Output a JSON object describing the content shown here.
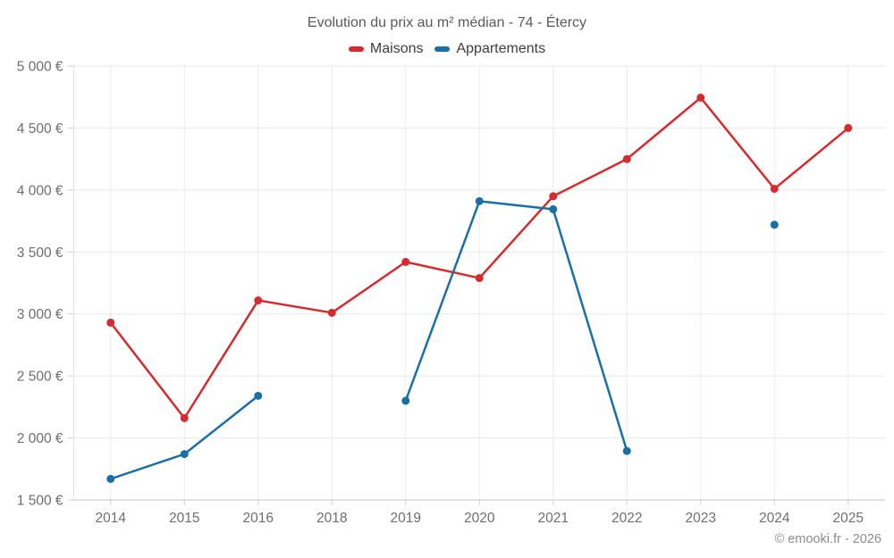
{
  "chart_data": {
    "type": "line",
    "title": "Evolution du prix au m² médian - 74 - Étercy",
    "categories": [
      "2014",
      "2015",
      "2016",
      "2018",
      "2019",
      "2020",
      "2021",
      "2022",
      "2023",
      "2024",
      "2025"
    ],
    "series": [
      {
        "name": "Maisons",
        "color": "#d62b2e",
        "values": [
          2930,
          2160,
          3110,
          3010,
          3420,
          3290,
          3950,
          4250,
          4745,
          4010,
          4500
        ]
      },
      {
        "name": "Appartements",
        "color": "#1a70a4",
        "values": [
          1670,
          1870,
          2340,
          null,
          2300,
          3910,
          3845,
          1895,
          null,
          3720,
          null
        ]
      }
    ],
    "ylim": [
      1500,
      5000
    ],
    "ytick_step": 500,
    "ytick_labels": [
      "1 500 €",
      "2 000 €",
      "2 500 €",
      "3 000 €",
      "3 500 €",
      "4 000 €",
      "4 500 €",
      "5 000 €"
    ],
    "xlabel": "",
    "ylabel": "",
    "grid": true,
    "legend_position": "top"
  },
  "footer": {
    "copyright": "© emooki.fr - 2026"
  }
}
